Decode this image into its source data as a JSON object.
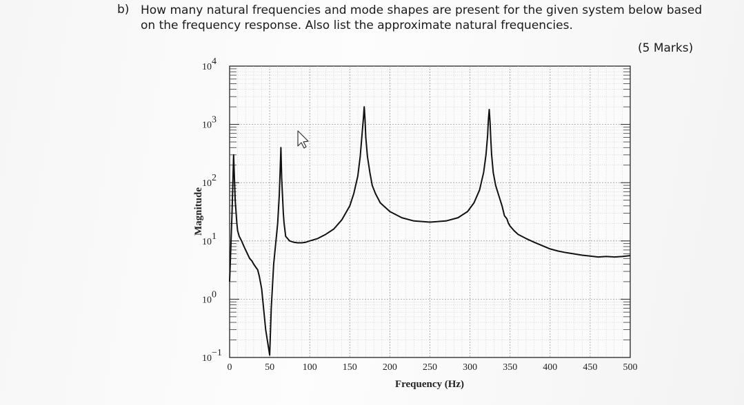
{
  "question": {
    "label": "b)",
    "line1": "How many natural frequencies and mode shapes are present for the given system below based",
    "line2": "on the frequency response. Also list the approximate natural frequencies.",
    "marks": "(5 Marks)"
  },
  "chart_data": {
    "type": "line",
    "xlabel": "Frequency (Hz)",
    "ylabel": "Magnitude",
    "xlim": [
      0,
      500
    ],
    "ylim_exponents": [
      -1,
      4
    ],
    "yscale": "log",
    "grid": true,
    "x_ticks": [
      "0",
      "50",
      "100",
      "150",
      "200",
      "250",
      "300",
      "350",
      "400",
      "450",
      "500"
    ],
    "y_ticks": [
      {
        "base": "10",
        "exp": "4"
      },
      {
        "base": "10",
        "exp": "3"
      },
      {
        "base": "10",
        "exp": "2"
      },
      {
        "base": "10",
        "exp": "1"
      },
      {
        "base": "10",
        "exp": "0"
      },
      {
        "base": "10",
        "exp": "−1"
      }
    ],
    "line_color": "#111111",
    "series": [
      {
        "x": [
          0,
          1,
          3,
          5,
          7,
          9,
          10,
          12,
          15,
          18,
          20,
          25,
          28,
          30,
          33,
          35,
          37,
          40,
          45,
          50,
          52,
          55,
          60,
          62,
          63,
          64,
          65,
          66,
          67,
          68,
          70,
          75,
          80,
          85,
          90,
          95,
          100,
          110,
          120,
          130,
          140,
          150,
          155,
          160,
          163,
          165,
          167,
          168,
          169,
          170,
          172,
          175,
          178,
          182,
          188,
          200,
          215,
          230,
          250,
          270,
          285,
          297,
          305,
          312,
          317,
          320,
          322,
          323,
          324,
          325,
          326,
          327,
          329,
          332,
          336,
          340,
          343,
          346,
          348,
          350,
          355,
          360,
          370,
          380,
          390,
          400,
          410,
          420,
          430,
          440,
          450,
          460,
          470,
          480,
          490,
          500
        ],
        "y": [
          2,
          5,
          30,
          300,
          50,
          20,
          15,
          12,
          10,
          8,
          7,
          5,
          4.5,
          4,
          3.5,
          3.2,
          2.5,
          1.5,
          0.3,
          0.11,
          0.7,
          4,
          20,
          60,
          150,
          400,
          120,
          60,
          30,
          20,
          12,
          10,
          9.5,
          9.3,
          9.3,
          9.5,
          10,
          11,
          13,
          16,
          23,
          40,
          65,
          130,
          280,
          600,
          1300,
          2000,
          1200,
          600,
          280,
          150,
          90,
          65,
          45,
          32,
          25,
          22,
          21,
          22,
          25,
          32,
          45,
          75,
          150,
          300,
          650,
          1200,
          1800,
          1100,
          550,
          300,
          150,
          90,
          60,
          40,
          27,
          24,
          20,
          18,
          15,
          13,
          11,
          9.5,
          8.3,
          7.3,
          6.7,
          6.3,
          6,
          5.7,
          5.5,
          5.3,
          5.4,
          5.3,
          5.4,
          5.6
        ]
      }
    ]
  }
}
